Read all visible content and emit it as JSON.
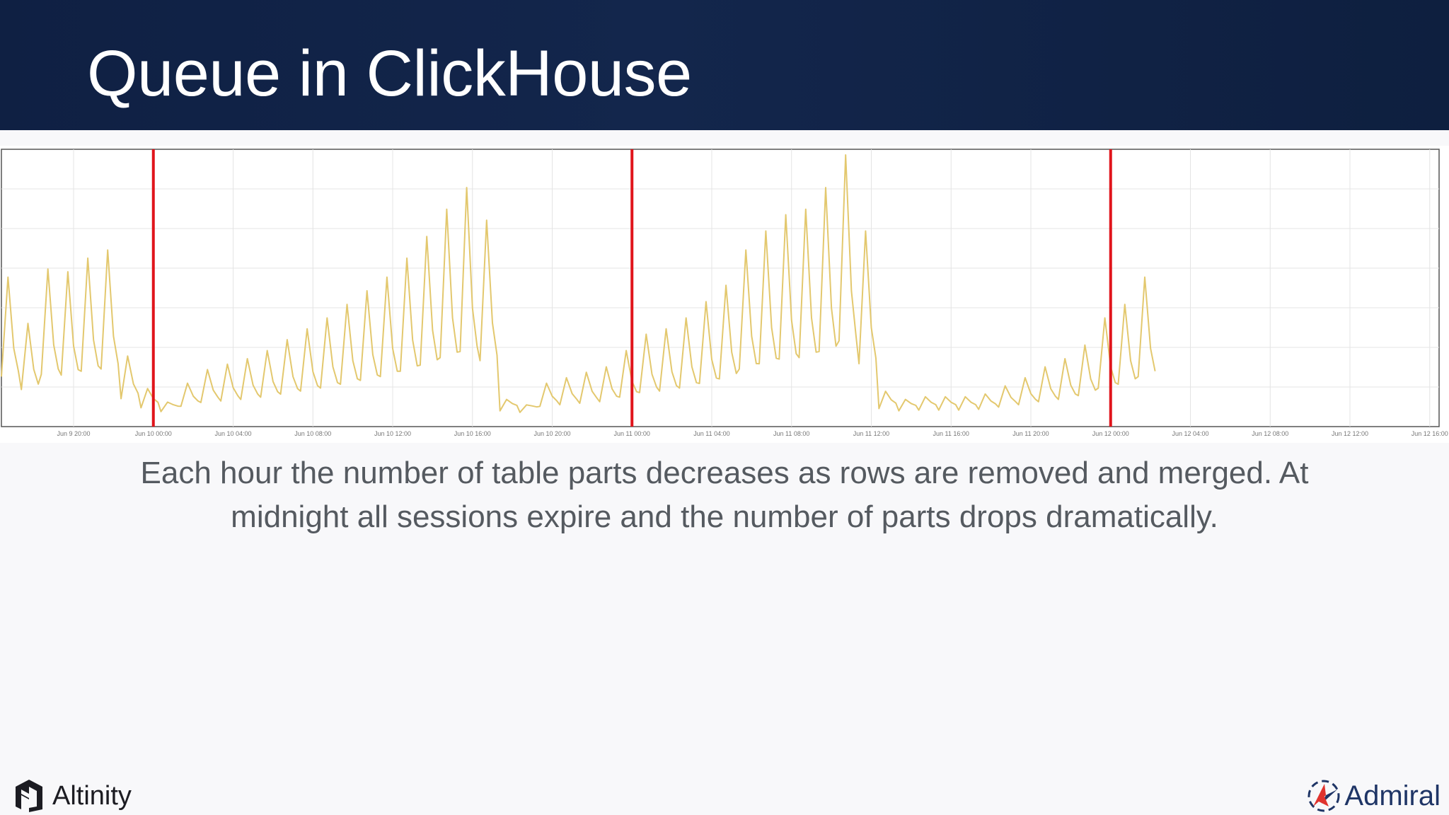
{
  "slide": {
    "title": "Queue in ClickHouse",
    "caption_line1": "Each hour the number of table parts decreases as rows are removed and merged. At",
    "caption_line2": "midnight all sessions expire and the number of parts drops dramatically.",
    "footer_left_brand": "Altinity",
    "footer_right_brand": "Admiral",
    "footer_left_icon": "altinity-logo-icon",
    "footer_right_icon": "admiral-logo-icon"
  },
  "colors": {
    "header_bg": "#12244a",
    "series": "#e3c86e",
    "marker": "#e0141b",
    "grid": "#e4e4e4",
    "admiral_red": "#e0332e",
    "admiral_blue": "#1f3566"
  },
  "chart_data": {
    "type": "line",
    "title": "",
    "xlabel": "",
    "ylabel": "",
    "grid": true,
    "y_ticks_visible": false,
    "ylim": [
      0,
      100
    ],
    "x_tick_labels": [
      "Jun 9 20:00",
      "Jun 10 00:00",
      "Jun 10 04:00",
      "Jun 10 08:00",
      "Jun 10 12:00",
      "Jun 10 16:00",
      "Jun 10 20:00",
      "Jun 11 00:00",
      "Jun 11 04:00",
      "Jun 11 08:00",
      "Jun 11 12:00",
      "Jun 11 16:00",
      "Jun 11 20:00",
      "Jun 12 00:00",
      "Jun 12 04:00",
      "Jun 12 08:00",
      "Jun 12 12:00",
      "Jun 12 16:00"
    ],
    "x_start": "Jun 9 16:25",
    "x_end": "Jun 12 16:25",
    "hourly_peaks": [
      55,
      38,
      58,
      57,
      62,
      65,
      26,
      14,
      9,
      16,
      21,
      23,
      25,
      28,
      32,
      36,
      40,
      45,
      50,
      55,
      62,
      70,
      80,
      88,
      76,
      10,
      8,
      16,
      18,
      20,
      22,
      28,
      34,
      36,
      40,
      46,
      52,
      65,
      72,
      78,
      80,
      88,
      102,
      72,
      13,
      10,
      11,
      11,
      11,
      12,
      15,
      18,
      22,
      25,
      30,
      40,
      45,
      55
    ],
    "midnight_markers": [
      "Jun 10 00:00",
      "Jun 11 00:00",
      "Jun 12 00:00"
    ],
    "series": [
      {
        "values_note_suppressed": false
      }
    ]
  }
}
